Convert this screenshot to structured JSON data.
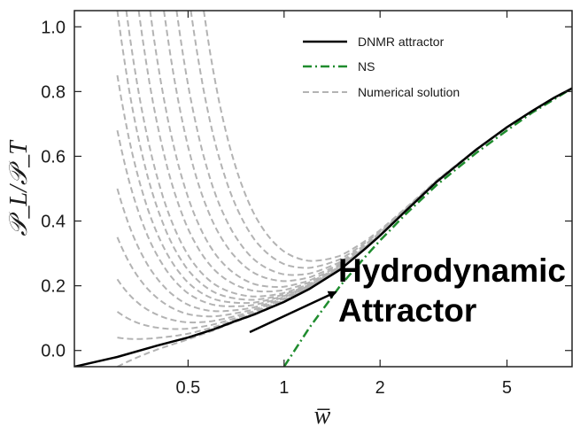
{
  "chart_data": {
    "type": "line",
    "xlabel": "w̅",
    "ylabel": "𝒫_L/𝒫_T",
    "x_scale": "log",
    "xlim": [
      0.22,
      8.0
    ],
    "ylim": [
      -0.05,
      1.05
    ],
    "x_ticks": [
      {
        "value": 0.5,
        "label": "0.5"
      },
      {
        "value": 1,
        "label": "1"
      },
      {
        "value": 2,
        "label": "2"
      },
      {
        "value": 5,
        "label": "5"
      }
    ],
    "y_ticks": [
      {
        "value": 0.0,
        "label": "0.0"
      },
      {
        "value": 0.2,
        "label": "0.2"
      },
      {
        "value": 0.4,
        "label": "0.4"
      },
      {
        "value": 0.6,
        "label": "0.6"
      },
      {
        "value": 0.8,
        "label": "0.8"
      },
      {
        "value": 1.0,
        "label": "1.0"
      }
    ],
    "grid": false,
    "legend_position": "top-right",
    "series": [
      {
        "name": "DNMR attractor",
        "color": "#000000",
        "style": "solid",
        "x": [
          0.22,
          0.3,
          0.4,
          0.5,
          0.6,
          0.7,
          0.8,
          1.0,
          1.2,
          1.5,
          1.8,
          2.0,
          2.4,
          3.0,
          4.0,
          5.0,
          6.0,
          7.0,
          8.0
        ],
        "y": [
          -0.05,
          -0.02,
          0.015,
          0.04,
          0.065,
          0.09,
          0.11,
          0.15,
          0.19,
          0.25,
          0.315,
          0.355,
          0.43,
          0.52,
          0.62,
          0.69,
          0.74,
          0.78,
          0.81
        ]
      },
      {
        "name": "NS",
        "color": "#1f8c2e",
        "style": "dash-dot",
        "x": [
          1.0,
          1.2,
          1.5,
          1.8,
          2.0,
          2.4,
          3.0,
          4.0,
          5.0,
          6.0,
          7.0,
          8.0
        ],
        "y": [
          -0.05,
          0.07,
          0.2,
          0.29,
          0.34,
          0.42,
          0.51,
          0.61,
          0.68,
          0.735,
          0.775,
          0.81
        ]
      },
      {
        "name": "Numerical solution",
        "color": "#b3b3b3",
        "style": "dashed",
        "start_points": [
          {
            "x": 0.3,
            "y": 1.05
          },
          {
            "x": 0.32,
            "y": 1.05
          },
          {
            "x": 0.35,
            "y": 1.05
          },
          {
            "x": 0.38,
            "y": 1.05
          },
          {
            "x": 0.42,
            "y": 1.05
          },
          {
            "x": 0.46,
            "y": 1.05
          },
          {
            "x": 0.51,
            "y": 1.05
          },
          {
            "x": 0.56,
            "y": 1.05
          },
          {
            "x": 0.3,
            "y": 0.85
          },
          {
            "x": 0.3,
            "y": 0.68
          },
          {
            "x": 0.3,
            "y": 0.5
          },
          {
            "x": 0.3,
            "y": 0.35
          },
          {
            "x": 0.3,
            "y": 0.22
          },
          {
            "x": 0.3,
            "y": 0.12
          },
          {
            "x": 0.3,
            "y": 0.04
          },
          {
            "x": 0.3,
            "y": -0.05
          }
        ]
      }
    ],
    "annotations": [
      {
        "text": "Hydrodynamic",
        "arrow_to": {
          "x": 1.45,
          "y": 0.18
        }
      },
      {
        "text": "Attractor"
      }
    ]
  }
}
